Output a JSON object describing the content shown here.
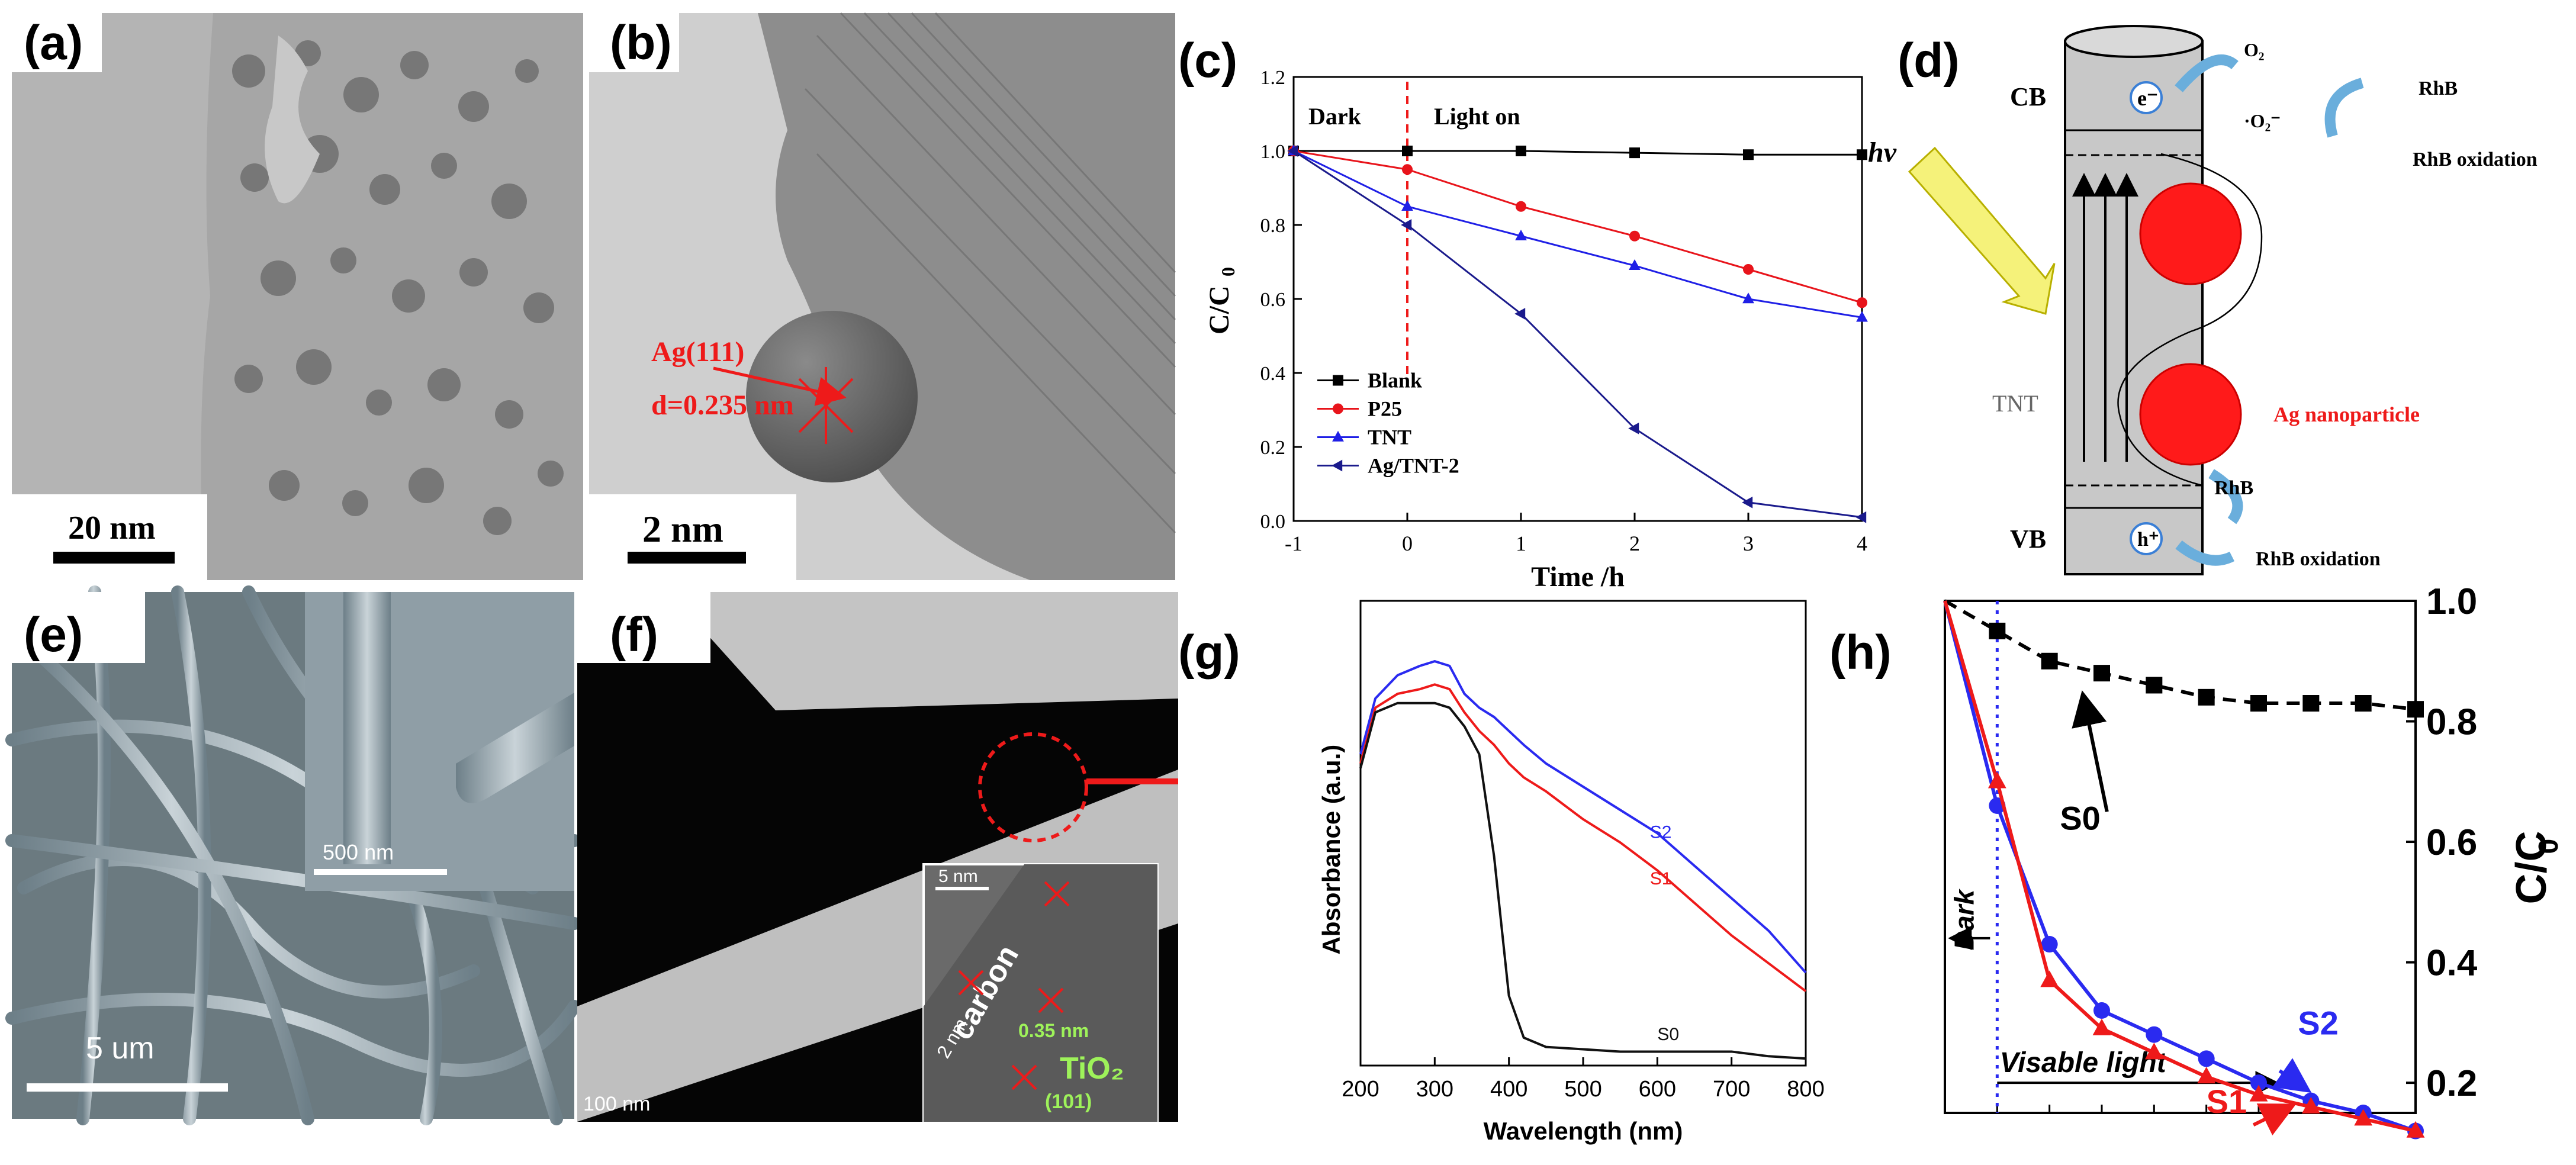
{
  "panels": {
    "a": {
      "label": "(a)",
      "scale": "20 nm"
    },
    "b": {
      "label": "(b)",
      "scale": "2 nm",
      "annotation1": "Ag(111)",
      "annotation2": "d=0.235 nm"
    },
    "c": {
      "label": "(c)"
    },
    "d": {
      "label": "(d)",
      "cb": "CB",
      "vb": "VB",
      "tnt": "TNT",
      "e": "e⁻",
      "h": "h⁺",
      "o2": "O₂",
      "o2rad": "·O₂⁻",
      "rhb_top": "RhB",
      "rhb_ox_top": "RhB oxidation",
      "rhb_bottom": "RhB",
      "rhb_ox_bottom": "RhB oxidation",
      "ag": "Ag nanoparticle"
    },
    "e": {
      "label": "(e)",
      "scale_main": "5 um",
      "scale_inset": "500 nm"
    },
    "f": {
      "label": "(f)",
      "scale_main": "100 nm",
      "inset_scale": "5 nm",
      "carbon": "carbon",
      "two_nm": "2 nm",
      "spacing": "0.35 nm",
      "tio2": "TiO₂",
      "plane": "(101)"
    },
    "g": {
      "label": "(g)"
    },
    "h": {
      "label": "(h)"
    }
  },
  "chart_data": [
    {
      "id": "c",
      "type": "line",
      "xlabel": "Time /h",
      "ylabel": "C/C",
      "ylabel_sub": "0",
      "xlim": [
        -1,
        4
      ],
      "ylim": [
        0,
        1.2
      ],
      "xticks": [
        "-1",
        "0",
        "1",
        "2",
        "3",
        "4"
      ],
      "yticks": [
        "0.0",
        "0.2",
        "0.4",
        "0.6",
        "0.8",
        "1.0",
        "1.2"
      ],
      "x": [
        -1,
        0,
        1,
        2,
        3,
        4
      ],
      "annotations": {
        "dark": "Dark",
        "light": "Light on",
        "hv": "hv"
      },
      "series": [
        {
          "name": "Blank",
          "color": "#000000",
          "marker": "square",
          "values": [
            1.0,
            1.0,
            1.0,
            0.995,
            0.99,
            0.99
          ]
        },
        {
          "name": "P25",
          "color": "#e8141b",
          "marker": "circle",
          "values": [
            1.0,
            0.95,
            0.85,
            0.77,
            0.68,
            0.59
          ]
        },
        {
          "name": "TNT",
          "color": "#1f1fe6",
          "marker": "triangle-up",
          "values": [
            1.0,
            0.85,
            0.77,
            0.69,
            0.6,
            0.55
          ]
        },
        {
          "name": "Ag/TNT-2",
          "color": "#1a1a8c",
          "marker": "triangle-left",
          "values": [
            1.0,
            0.8,
            0.56,
            0.25,
            0.05,
            0.01
          ]
        }
      ]
    },
    {
      "id": "g",
      "type": "line",
      "xlabel": "Wavelength (nm)",
      "ylabel": "Absorbance (a.u.)",
      "xlim": [
        200,
        800
      ],
      "ylim": [
        0,
        1
      ],
      "xticks": [
        "200",
        "300",
        "400",
        "500",
        "600",
        "700",
        "800"
      ],
      "x": [
        200,
        220,
        250,
        280,
        300,
        320,
        340,
        360,
        380,
        400,
        420,
        450,
        500,
        550,
        600,
        650,
        700,
        750,
        800
      ],
      "series": [
        {
          "name": "S2",
          "color": "#2a2af0",
          "values": [
            0.67,
            0.79,
            0.84,
            0.86,
            0.87,
            0.86,
            0.8,
            0.77,
            0.75,
            0.72,
            0.69,
            0.65,
            0.6,
            0.55,
            0.5,
            0.43,
            0.36,
            0.29,
            0.2
          ]
        },
        {
          "name": "S1",
          "color": "#ee1a1a",
          "values": [
            0.65,
            0.77,
            0.8,
            0.81,
            0.82,
            0.81,
            0.76,
            0.72,
            0.69,
            0.65,
            0.62,
            0.59,
            0.53,
            0.48,
            0.42,
            0.35,
            0.28,
            0.22,
            0.16
          ]
        },
        {
          "name": "S0",
          "color": "#111111",
          "values": [
            0.64,
            0.76,
            0.78,
            0.78,
            0.78,
            0.77,
            0.73,
            0.67,
            0.45,
            0.15,
            0.06,
            0.04,
            0.035,
            0.03,
            0.03,
            0.03,
            0.03,
            0.02,
            0.015
          ]
        }
      ]
    },
    {
      "id": "h",
      "type": "line",
      "ylabel": "C/C",
      "ylabel_sub": "0",
      "ylim": [
        0.15,
        1.0
      ],
      "yticks": [
        "0.2",
        "0.4",
        "0.6",
        "0.8",
        "1.0"
      ],
      "x": [
        -1,
        0,
        1,
        2,
        3,
        4,
        5,
        6,
        7,
        8
      ],
      "annotations": {
        "dark": "Dark",
        "visible": "Visable light"
      },
      "series": [
        {
          "name": "S0",
          "color": "#000000",
          "marker": "square",
          "dashed": true,
          "values": [
            1.0,
            0.95,
            0.9,
            0.88,
            0.86,
            0.84,
            0.83,
            0.83,
            0.83,
            0.82
          ]
        },
        {
          "name": "S2",
          "color": "#2a2af0",
          "marker": "circle",
          "values": [
            1.0,
            0.66,
            0.43,
            0.32,
            0.28,
            0.24,
            0.2,
            0.17,
            0.15,
            0.12
          ]
        },
        {
          "name": "S1",
          "color": "#ee1a1a",
          "marker": "triangle-up",
          "values": [
            1.0,
            0.7,
            0.37,
            0.29,
            0.25,
            0.21,
            0.18,
            0.16,
            0.14,
            0.12
          ]
        }
      ]
    }
  ]
}
